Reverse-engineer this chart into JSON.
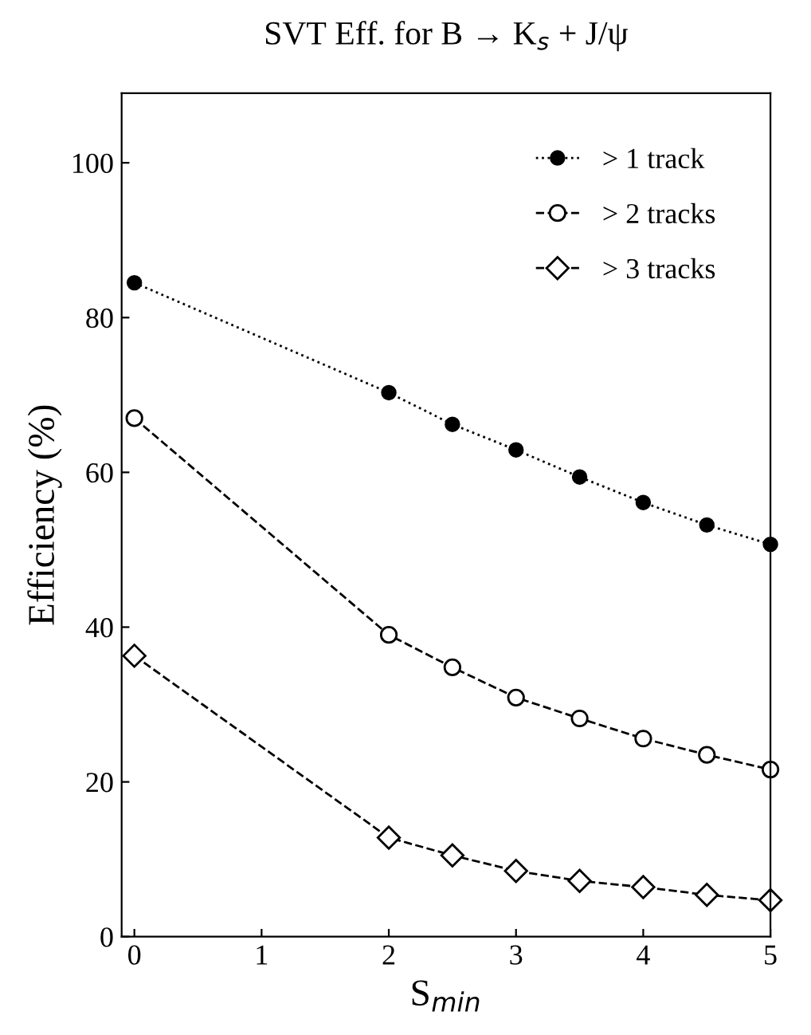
{
  "chart_data": {
    "type": "line",
    "title": "SVT Eff. for B → K$_{s}$ + J/ψ",
    "xlabel": "S$_{min}$",
    "ylabel": "Efficiency (%)",
    "x": [
      0,
      2,
      2.5,
      3,
      3.5,
      4,
      4.5,
      5
    ],
    "series": [
      {
        "name": "> 1 track",
        "color": "#000000",
        "marker": "circle",
        "line_style": "dotted",
        "values": [
          84.5,
          70.3,
          66.2,
          62.9,
          59.4,
          56.1,
          53.2,
          50.7
        ]
      },
      {
        "name": "> 2 tracks",
        "color": "#000000",
        "marker": "circle",
        "line_style": "dashed",
        "values": [
          67.0,
          39.0,
          34.8,
          30.9,
          28.2,
          25.6,
          23.5,
          21.6
        ]
      },
      {
        "name": "> 3 tracks",
        "color": "#000000",
        "marker": "diamond",
        "line_style": "dashed",
        "values": [
          36.3,
          12.8,
          10.5,
          8.5,
          7.2,
          6.4,
          5.4,
          4.7
        ]
      }
    ],
    "xlim": [
      -0.1,
      5
    ],
    "xticks": [
      0,
      1,
      2,
      3,
      4,
      5
    ],
    "ylim": [
      0,
      109
    ],
    "yticks": [
      0,
      20,
      40,
      60,
      80,
      100
    ],
    "grid": false,
    "legend": "top right"
  }
}
